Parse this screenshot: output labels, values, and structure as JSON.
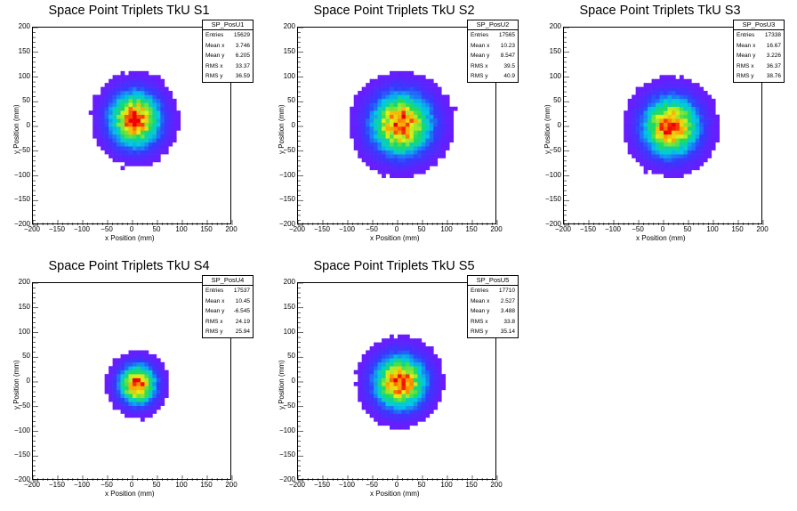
{
  "panels": [
    {
      "title": "Space Point Triplets TkU S1",
      "stats": {
        "name": "SP_PosU1",
        "entries": "15629",
        "mean_x": "3.746",
        "mean_y": "6.205",
        "rms_x": "33.37",
        "rms_y": "36.59"
      }
    },
    {
      "title": "Space Point Triplets TkU S2",
      "stats": {
        "name": "SP_PosU2",
        "entries": "17565",
        "mean_x": "10.23",
        "mean_y": "8.547",
        "rms_x": "39.5",
        "rms_y": "40.9"
      }
    },
    {
      "title": "Space Point Triplets TkU S3",
      "stats": {
        "name": "SP_PosU3",
        "entries": "17338",
        "mean_x": "16.67",
        "mean_y": "3.226",
        "rms_x": "36.37",
        "rms_y": "38.76"
      }
    },
    {
      "title": "Space Point Triplets TkU S4",
      "stats": {
        "name": "SP_PosU4",
        "entries": "17537",
        "mean_x": "10.45",
        "mean_y": "-6.545",
        "rms_x": "24.19",
        "rms_y": "25.94"
      }
    },
    {
      "title": "Space Point Triplets TkU S5",
      "stats": {
        "name": "SP_PosU5",
        "entries": "17710",
        "mean_x": "2.527",
        "mean_y": "3.488",
        "rms_x": "33.8",
        "rms_y": "35.14"
      }
    }
  ],
  "stat_labels": {
    "entries": "Entries",
    "mean_x": "Mean x",
    "mean_y": "Mean y",
    "rms_x": "RMS x",
    "rms_y": "RMS y"
  },
  "axis_labels": {
    "x": "x Position (mm)",
    "y": "y Position (mm)"
  },
  "ticks": {
    "x": [
      "−200",
      "−150",
      "−100",
      "−50",
      "0",
      "50",
      "100",
      "150",
      "200"
    ],
    "y": [
      "200",
      "150",
      "100",
      "50",
      "0",
      "−50",
      "−100",
      "−150",
      "−200"
    ]
  },
  "chart_data": [
    {
      "type": "heatmap",
      "title": "Space Point Triplets TkU S1",
      "xlabel": "x Position (mm)",
      "ylabel": "y Position (mm)",
      "xlim": [
        -200,
        200
      ],
      "ylim": [
        -200,
        200
      ],
      "entries": 15629,
      "mean_x": 3.746,
      "mean_y": 6.205,
      "rms_x": 33.37,
      "rms_y": 36.59,
      "peak": [
        5,
        15
      ],
      "colormap": "rainbow (purple-blue-cyan-green-yellow-red)"
    },
    {
      "type": "heatmap",
      "title": "Space Point Triplets TkU S2",
      "xlabel": "x Position (mm)",
      "ylabel": "y Position (mm)",
      "xlim": [
        -200,
        200
      ],
      "ylim": [
        -200,
        200
      ],
      "entries": 17565,
      "mean_x": 10.23,
      "mean_y": 8.547,
      "rms_x": 39.5,
      "rms_y": 40.9,
      "peak": [
        8,
        5
      ],
      "colormap": "rainbow (purple-blue-cyan-green-yellow-red)"
    },
    {
      "type": "heatmap",
      "title": "Space Point Triplets TkU S3",
      "xlabel": "x Position (mm)",
      "ylabel": "y Position (mm)",
      "xlim": [
        -200,
        200
      ],
      "ylim": [
        -200,
        200
      ],
      "entries": 17338,
      "mean_x": 16.67,
      "mean_y": 3.226,
      "rms_x": 36.37,
      "rms_y": 38.76,
      "peak": [
        15,
        0
      ],
      "colormap": "rainbow (purple-blue-cyan-green-yellow-red)"
    },
    {
      "type": "heatmap",
      "title": "Space Point Triplets TkU S4",
      "xlabel": "x Position (mm)",
      "ylabel": "y Position (mm)",
      "xlim": [
        -200,
        200
      ],
      "ylim": [
        -200,
        200
      ],
      "entries": 17537,
      "mean_x": 10.45,
      "mean_y": -6.545,
      "rms_x": 24.19,
      "rms_y": 25.94,
      "peak": [
        10,
        -5
      ],
      "colormap": "rainbow (purple-blue-cyan-green-yellow-red)"
    },
    {
      "type": "heatmap",
      "title": "Space Point Triplets TkU S5",
      "xlabel": "x Position (mm)",
      "ylabel": "y Position (mm)",
      "xlim": [
        -200,
        200
      ],
      "ylim": [
        -200,
        200
      ],
      "entries": 17710,
      "mean_x": 2.527,
      "mean_y": 3.488,
      "rms_x": 33.8,
      "rms_y": 35.14,
      "peak": [
        5,
        0
      ],
      "colormap": "rainbow (purple-blue-cyan-green-yellow-red)"
    }
  ]
}
